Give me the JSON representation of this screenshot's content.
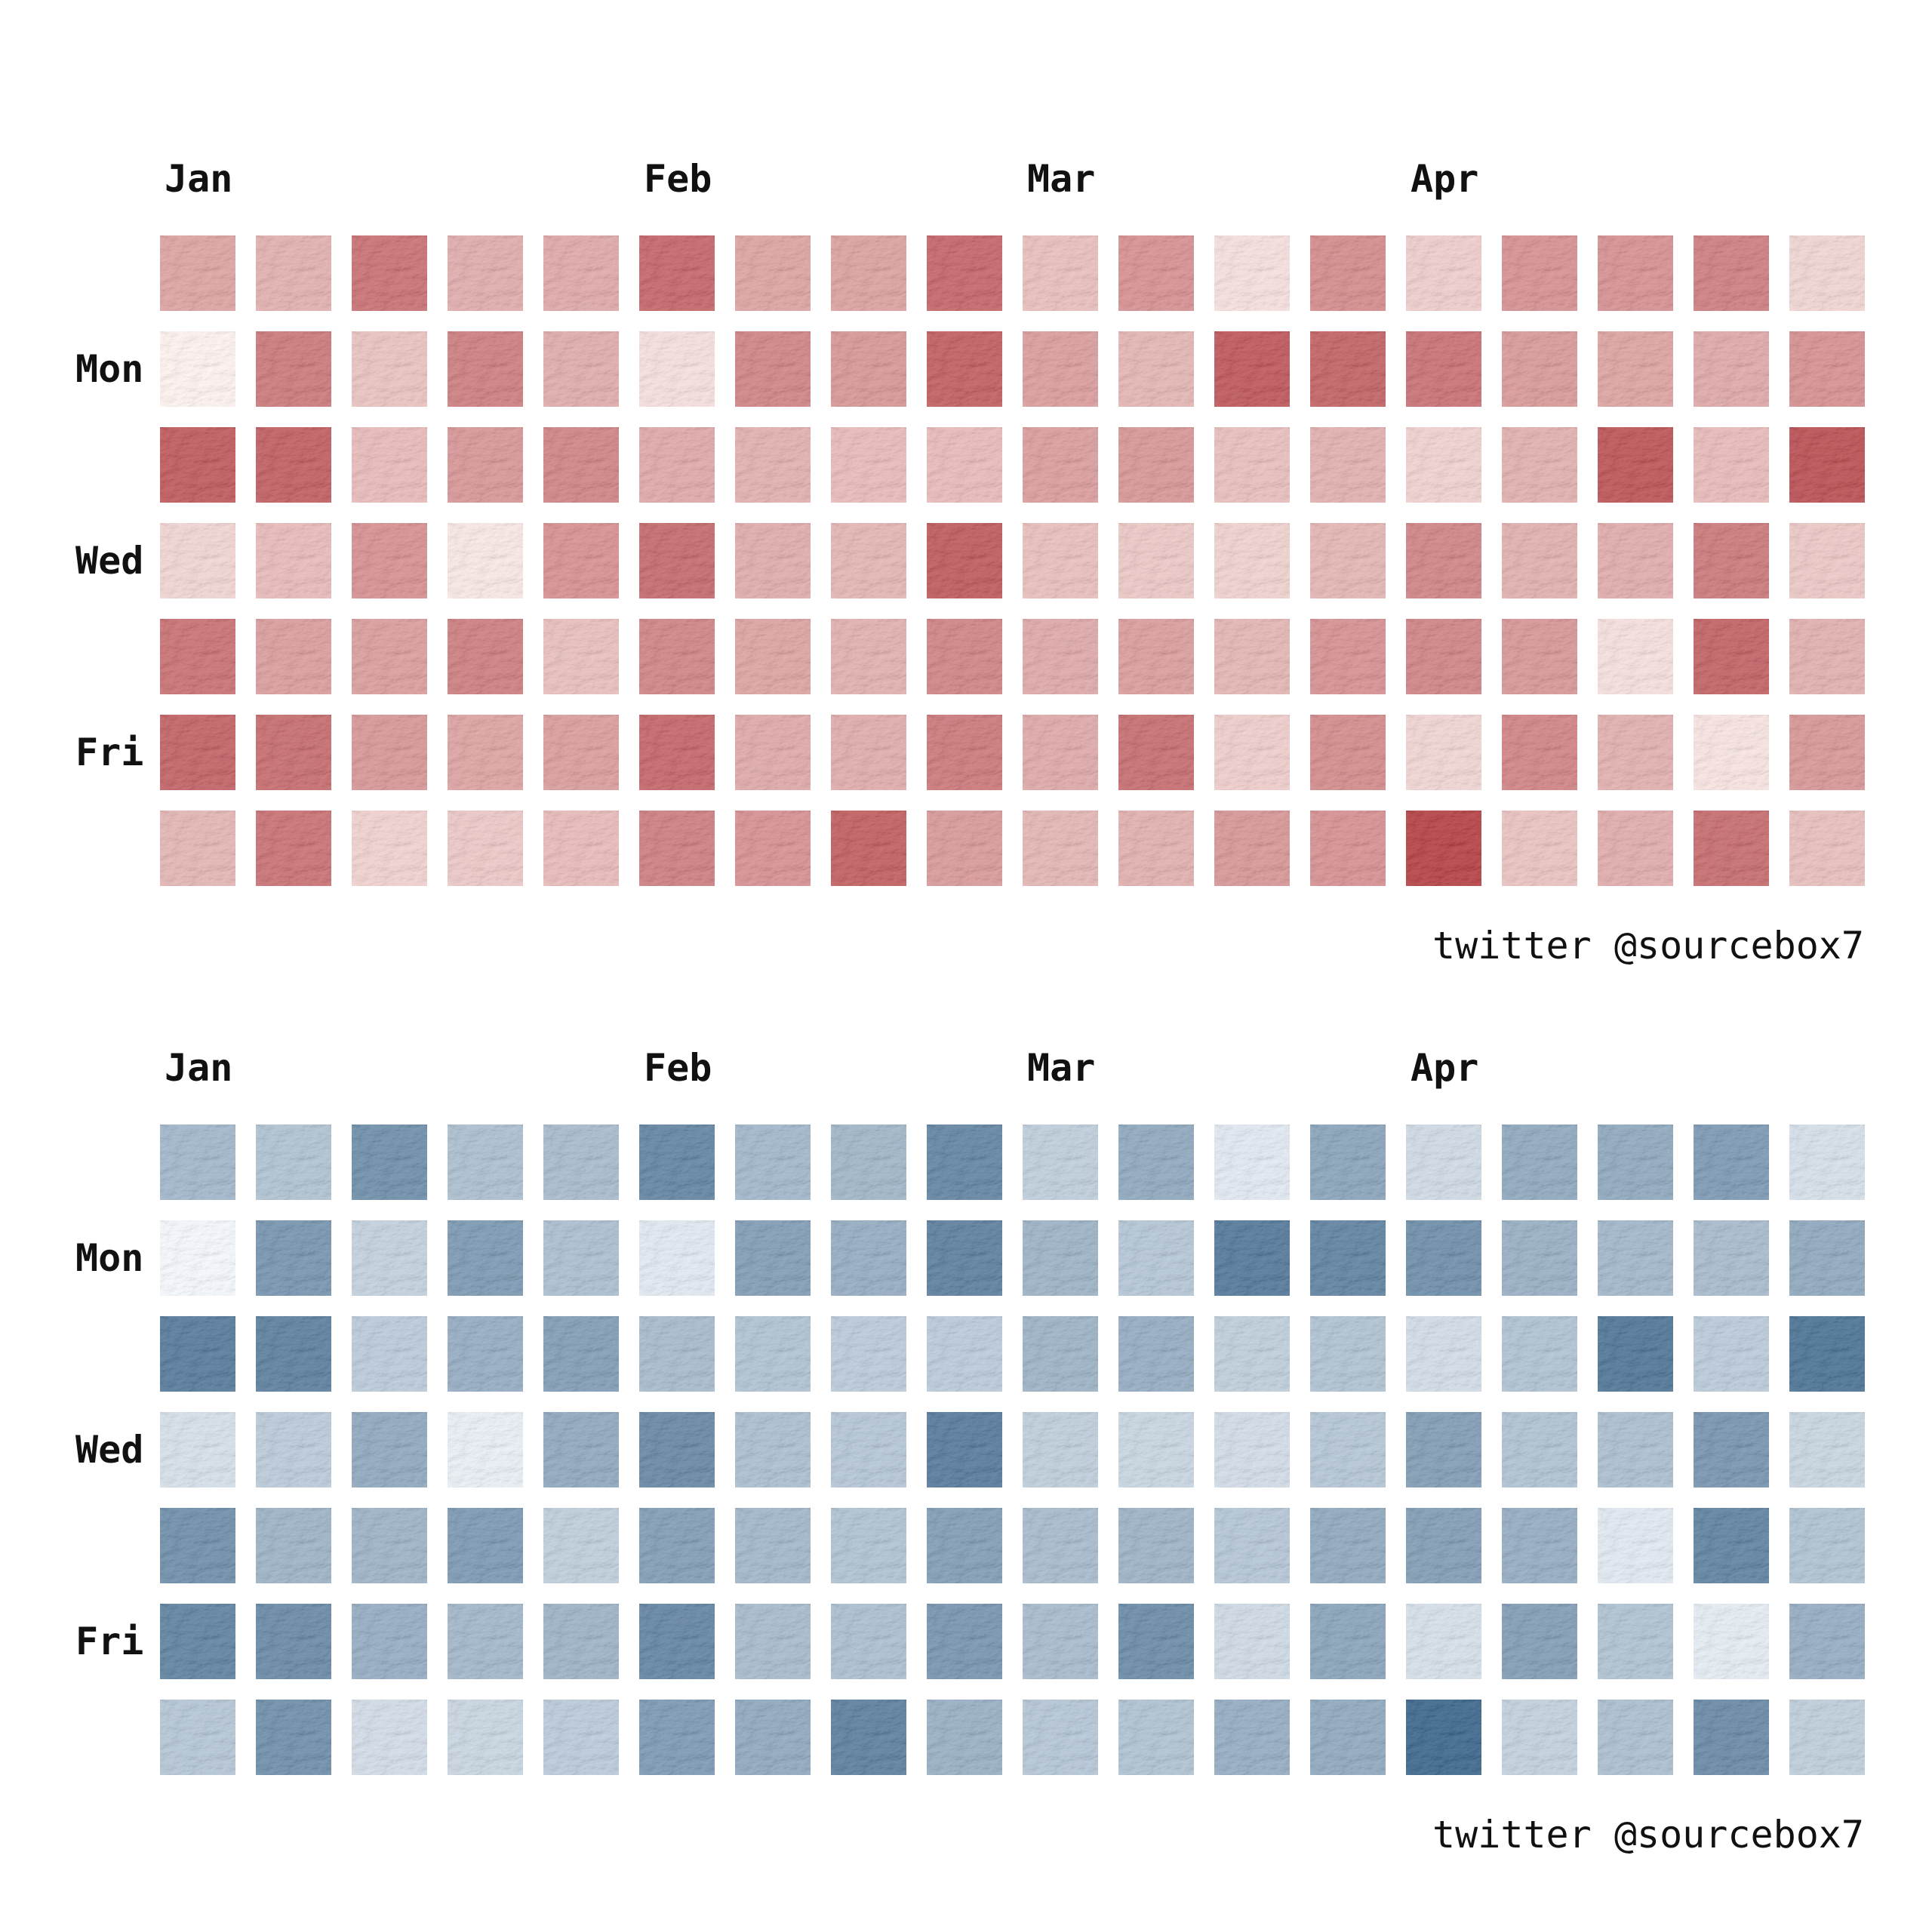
{
  "chart_data": [
    {
      "type": "heatmap",
      "name": "red-calendar-heatmap",
      "colormap": "Reds",
      "color_low": "#fff5f0",
      "color_high": "#a30f15",
      "month_labels": [
        {
          "label": "Jan",
          "week": 0
        },
        {
          "label": "Feb",
          "week": 5
        },
        {
          "label": "Mar",
          "week": 9
        },
        {
          "label": "Apr",
          "week": 13
        }
      ],
      "day_labels": [
        {
          "label": "Mon",
          "row": 1
        },
        {
          "label": "Wed",
          "row": 3
        },
        {
          "label": "Fri",
          "row": 5
        }
      ],
      "rows": 7,
      "weeks": 18,
      "values": [
        [
          0.45,
          0.38,
          0.72,
          0.4,
          0.42,
          0.78,
          0.45,
          0.46,
          0.78,
          0.3,
          0.55,
          0.12,
          0.58,
          0.22,
          0.55,
          0.55,
          0.65,
          0.18
        ],
        [
          0.02,
          0.68,
          0.28,
          0.65,
          0.4,
          0.12,
          0.62,
          0.52,
          0.82,
          0.48,
          0.35,
          0.86,
          0.8,
          0.72,
          0.5,
          0.45,
          0.42,
          0.55
        ],
        [
          0.85,
          0.82,
          0.32,
          0.52,
          0.62,
          0.42,
          0.38,
          0.32,
          0.32,
          0.48,
          0.52,
          0.3,
          0.38,
          0.2,
          0.38,
          0.88,
          0.32,
          0.9
        ],
        [
          0.18,
          0.32,
          0.55,
          0.08,
          0.55,
          0.76,
          0.4,
          0.35,
          0.85,
          0.3,
          0.25,
          0.2,
          0.35,
          0.62,
          0.38,
          0.4,
          0.68,
          0.25
        ],
        [
          0.72,
          0.48,
          0.48,
          0.65,
          0.3,
          0.62,
          0.45,
          0.38,
          0.62,
          0.42,
          0.48,
          0.35,
          0.55,
          0.62,
          0.52,
          0.12,
          0.8,
          0.38
        ],
        [
          0.8,
          0.75,
          0.52,
          0.45,
          0.48,
          0.78,
          0.42,
          0.4,
          0.68,
          0.42,
          0.74,
          0.22,
          0.58,
          0.18,
          0.62,
          0.38,
          0.1,
          0.52
        ],
        [
          0.35,
          0.72,
          0.2,
          0.25,
          0.32,
          0.65,
          0.55,
          0.82,
          0.5,
          0.35,
          0.38,
          0.52,
          0.55,
          0.98,
          0.28,
          0.4,
          0.75,
          0.3
        ]
      ],
      "credit": "twitter @sourcebox7"
    },
    {
      "type": "heatmap",
      "name": "blue-calendar-heatmap",
      "colormap": "Blues",
      "color_low": "#f7fbff",
      "color_high": "#0a3f6e",
      "month_labels": [
        {
          "label": "Jan",
          "week": 0
        },
        {
          "label": "Feb",
          "week": 5
        },
        {
          "label": "Mar",
          "week": 9
        },
        {
          "label": "Apr",
          "week": 13
        }
      ],
      "day_labels": [
        {
          "label": "Mon",
          "row": 1
        },
        {
          "label": "Wed",
          "row": 3
        },
        {
          "label": "Fri",
          "row": 5
        }
      ],
      "rows": 7,
      "weeks": 18,
      "values": [
        [
          0.45,
          0.38,
          0.72,
          0.4,
          0.42,
          0.78,
          0.45,
          0.46,
          0.78,
          0.3,
          0.55,
          0.12,
          0.58,
          0.22,
          0.55,
          0.55,
          0.65,
          0.18
        ],
        [
          0.02,
          0.68,
          0.28,
          0.65,
          0.4,
          0.12,
          0.62,
          0.52,
          0.82,
          0.48,
          0.35,
          0.86,
          0.8,
          0.72,
          0.5,
          0.45,
          0.42,
          0.55
        ],
        [
          0.85,
          0.82,
          0.32,
          0.52,
          0.62,
          0.42,
          0.38,
          0.32,
          0.32,
          0.48,
          0.52,
          0.3,
          0.38,
          0.2,
          0.38,
          0.88,
          0.32,
          0.9
        ],
        [
          0.18,
          0.32,
          0.55,
          0.08,
          0.55,
          0.76,
          0.4,
          0.35,
          0.85,
          0.3,
          0.25,
          0.2,
          0.35,
          0.62,
          0.38,
          0.4,
          0.68,
          0.25
        ],
        [
          0.72,
          0.48,
          0.48,
          0.65,
          0.3,
          0.62,
          0.45,
          0.38,
          0.62,
          0.42,
          0.48,
          0.35,
          0.55,
          0.62,
          0.52,
          0.12,
          0.8,
          0.38
        ],
        [
          0.8,
          0.75,
          0.52,
          0.45,
          0.48,
          0.78,
          0.42,
          0.4,
          0.68,
          0.42,
          0.74,
          0.22,
          0.58,
          0.18,
          0.62,
          0.38,
          0.1,
          0.52
        ],
        [
          0.35,
          0.72,
          0.2,
          0.25,
          0.32,
          0.65,
          0.55,
          0.82,
          0.5,
          0.35,
          0.38,
          0.52,
          0.55,
          0.98,
          0.28,
          0.4,
          0.75,
          0.3
        ]
      ],
      "credit": "twitter @sourcebox7"
    }
  ]
}
